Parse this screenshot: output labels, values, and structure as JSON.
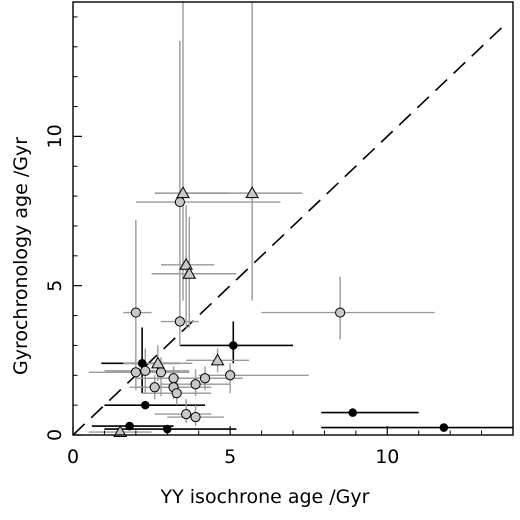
{
  "chart_data": {
    "type": "scatter",
    "xlabel": "YY isochrone age /Gyr",
    "ylabel": "Gyrochronology age /Gyr",
    "xlim": [
      0,
      14
    ],
    "ylim": [
      0,
      14.5
    ],
    "x_ticks": [
      0,
      5,
      10
    ],
    "y_ticks": [
      0,
      5,
      10
    ],
    "x_tick_labels": [
      "0",
      "5",
      "10"
    ],
    "y_tick_labels": [
      "0",
      "5",
      "10"
    ],
    "one_to_one_line": {
      "style": "dashed",
      "from": [
        0,
        0
      ],
      "to": [
        13.7,
        13.7
      ]
    },
    "grid": false,
    "legend": "none",
    "series": [
      {
        "marker": "filled-circle",
        "color": "#000000",
        "points": [
          {
            "x": 2.2,
            "y": 2.4,
            "xlo": 0.9,
            "xhi": 3.4,
            "ylo": 1.4,
            "yhi": 3.6
          },
          {
            "x": 5.1,
            "y": 3.0,
            "xlo": 3.4,
            "xhi": 7.0,
            "ylo": 2.4,
            "yhi": 3.8
          },
          {
            "x": 2.3,
            "y": 1.0,
            "xlo": 1.0,
            "xhi": 4.2,
            "ylo": 1.0,
            "yhi": 1.0
          },
          {
            "x": 8.9,
            "y": 0.75,
            "xlo": 7.9,
            "xhi": 11.0,
            "ylo": 0.75,
            "yhi": 0.75
          },
          {
            "x": 11.8,
            "y": 0.25,
            "xlo": 7.9,
            "xhi": 14.0,
            "ylo": 0.25,
            "yhi": 0.25
          },
          {
            "x": 3.0,
            "y": 0.2,
            "xlo": 1.0,
            "xhi": 5.2,
            "ylo": 0.2,
            "yhi": 0.2
          },
          {
            "x": 1.8,
            "y": 0.3,
            "xlo": 0.6,
            "xhi": 3.2,
            "ylo": 0.3,
            "yhi": 0.3
          }
        ]
      },
      {
        "marker": "open-circle",
        "color": "#9a9a9a",
        "points": [
          {
            "x": 3.4,
            "y": 7.8,
            "xlo": 2.0,
            "xhi": 6.6,
            "ylo": 3.0,
            "yhi": 13.2
          },
          {
            "x": 2.0,
            "y": 4.1,
            "xlo": 1.6,
            "xhi": 2.5,
            "ylo": 2.2,
            "yhi": 7.2
          },
          {
            "x": 8.5,
            "y": 4.1,
            "xlo": 6.0,
            "xhi": 11.5,
            "ylo": 3.2,
            "yhi": 5.3
          },
          {
            "x": 3.4,
            "y": 3.8,
            "xlo": 2.8,
            "xhi": 4.0,
            "ylo": 3.8,
            "yhi": 3.8
          },
          {
            "x": 2.0,
            "y": 2.1,
            "xlo": 0.5,
            "xhi": 3.4,
            "ylo": 1.5,
            "yhi": 2.6
          },
          {
            "x": 2.3,
            "y": 2.15,
            "xlo": 1.0,
            "xhi": 3.7,
            "ylo": 1.4,
            "yhi": 2.9
          },
          {
            "x": 2.8,
            "y": 2.1,
            "xlo": 1.9,
            "xhi": 3.7,
            "ylo": 1.3,
            "yhi": 2.6
          },
          {
            "x": 3.2,
            "y": 1.9,
            "xlo": 2.0,
            "xhi": 4.4,
            "ylo": 1.5,
            "yhi": 2.3
          },
          {
            "x": 3.2,
            "y": 1.6,
            "xlo": 2.0,
            "xhi": 4.4,
            "ylo": 1.2,
            "yhi": 2.0
          },
          {
            "x": 3.3,
            "y": 1.4,
            "xlo": 2.2,
            "xhi": 4.4,
            "ylo": 1.0,
            "yhi": 1.8
          },
          {
            "x": 2.6,
            "y": 1.6,
            "xlo": 1.8,
            "xhi": 3.4,
            "ylo": 1.2,
            "yhi": 2.0
          },
          {
            "x": 3.9,
            "y": 1.7,
            "xlo": 2.8,
            "xhi": 5.0,
            "ylo": 1.3,
            "yhi": 2.2
          },
          {
            "x": 4.2,
            "y": 1.9,
            "xlo": 3.2,
            "xhi": 5.4,
            "ylo": 1.5,
            "yhi": 2.3
          },
          {
            "x": 5.0,
            "y": 2.0,
            "xlo": 4.0,
            "xhi": 7.5,
            "ylo": 1.4,
            "yhi": 2.4
          },
          {
            "x": 3.6,
            "y": 0.7,
            "xlo": 2.6,
            "xhi": 4.4,
            "ylo": 0.4,
            "yhi": 1.2
          },
          {
            "x": 3.9,
            "y": 0.6,
            "xlo": 3.0,
            "xhi": 4.8,
            "ylo": 0.3,
            "yhi": 1.0
          }
        ]
      },
      {
        "marker": "open-triangle",
        "color": "#9a9a9a",
        "points": [
          {
            "x": 3.5,
            "y": 8.1,
            "xlo": 2.6,
            "xhi": 5.0,
            "ylo": 4.5,
            "yhi": 14.5
          },
          {
            "x": 5.7,
            "y": 8.1,
            "xlo": 3.6,
            "xhi": 7.3,
            "ylo": 4.5,
            "yhi": 14.5
          },
          {
            "x": 3.6,
            "y": 5.7,
            "xlo": 2.8,
            "xhi": 4.5,
            "ylo": 3.6,
            "yhi": 7.7
          },
          {
            "x": 3.7,
            "y": 5.4,
            "xlo": 2.5,
            "xhi": 5.2,
            "ylo": 3.6,
            "yhi": 7.3
          },
          {
            "x": 2.7,
            "y": 2.4,
            "xlo": 1.6,
            "xhi": 3.8,
            "ylo": 1.8,
            "yhi": 3.0
          },
          {
            "x": 4.6,
            "y": 2.5,
            "xlo": 3.6,
            "xhi": 5.6,
            "ylo": 2.1,
            "yhi": 2.9
          },
          {
            "x": 1.5,
            "y": 0.1,
            "xlo": 0.5,
            "xhi": 2.5,
            "ylo": 0.1,
            "yhi": 0.1
          }
        ]
      }
    ]
  }
}
